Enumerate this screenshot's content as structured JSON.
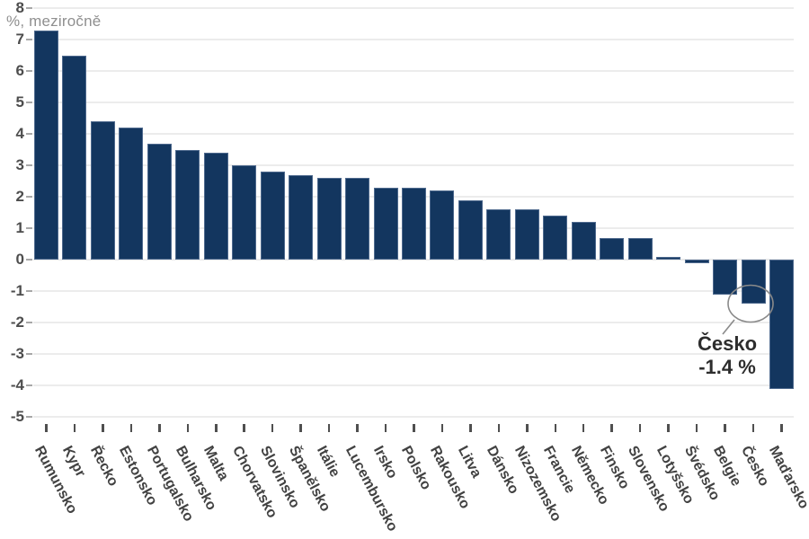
{
  "chart_data": {
    "type": "bar",
    "title": "%, meziročně",
    "categories": [
      "Rumunsko",
      "Kypr",
      "Řecko",
      "Estonsko",
      "Portugalsko",
      "Bulharsko",
      "Malta",
      "Chorvatsko",
      "Slovinsko",
      "Španělsko",
      "Itálie",
      "Lucembursko",
      "Irsko",
      "Polsko",
      "Rakousko",
      "Litva",
      "Dánsko",
      "Nizozemsko",
      "Francie",
      "Německo",
      "Finsko",
      "Slovensko",
      "Lotyšsko",
      "Švédsko",
      "Belgie",
      "Česko",
      "Maďarsko"
    ],
    "values": [
      7.3,
      6.5,
      4.4,
      4.2,
      3.7,
      3.5,
      3.4,
      3.0,
      2.8,
      2.7,
      2.6,
      2.6,
      2.3,
      2.3,
      2.2,
      1.9,
      1.6,
      1.6,
      1.4,
      1.2,
      0.7,
      0.7,
      0.1,
      -0.1,
      -1.1,
      -1.4,
      -4.1
    ],
    "y_ticks": [
      8,
      7,
      6,
      5,
      4,
      3,
      2,
      1,
      0,
      -1,
      -2,
      -3,
      -4,
      -5
    ],
    "ylim": [
      -5,
      8
    ],
    "xlabel": "",
    "ylabel": "%, meziročně",
    "grid": "horizontal",
    "legend_position": "none",
    "colors": {
      "bar_fill": "#13365f",
      "bar_border": "#8296b3",
      "gridline": "#ececec",
      "y_label": "#4d4d4d",
      "x_label": "#424242",
      "title": "#8f8f8f",
      "annotation_text": "#2d2d2d",
      "annotation_circle": "#8a8a8a"
    },
    "annotation": {
      "label": "Česko",
      "value_label": "-1.4 %",
      "target_category": "Česko",
      "target_value": -1.4
    }
  }
}
